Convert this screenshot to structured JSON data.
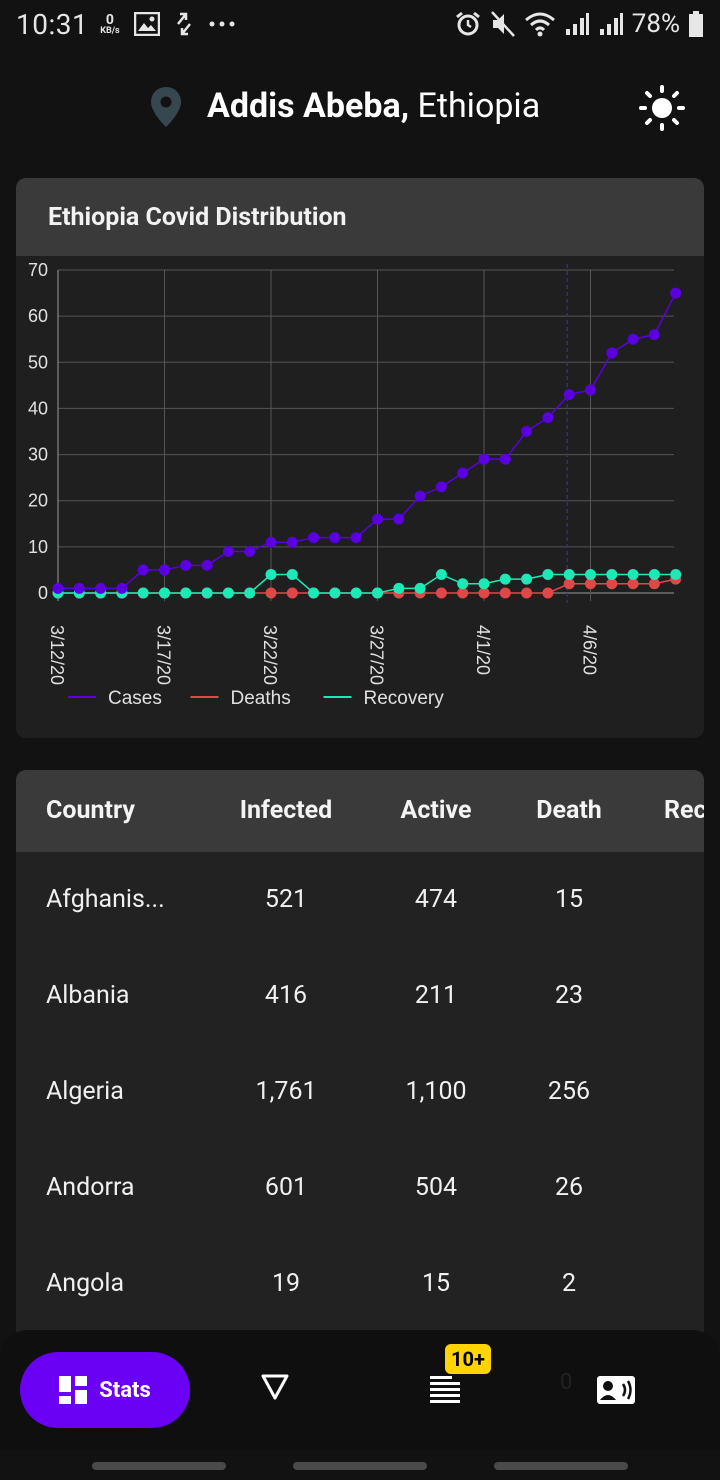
{
  "status_bar": {
    "time": "10:31",
    "net_speed_value": "0",
    "net_speed_unit": "KB/s",
    "battery": "78%"
  },
  "location": {
    "city": "Addis Abeba,",
    "country": "Ethiopia"
  },
  "chart_card": {
    "title": "Ethiopia Covid Distribution"
  },
  "chart_data": {
    "type": "line",
    "title": "Ethiopia Covid Distribution",
    "x": [
      "3/12/20",
      "3/13/20",
      "3/14/20",
      "3/15/20",
      "3/16/20",
      "3/17/20",
      "3/18/20",
      "3/19/20",
      "3/20/20",
      "3/21/20",
      "3/22/20",
      "3/23/20",
      "3/24/20",
      "3/25/20",
      "3/26/20",
      "3/27/20",
      "3/28/20",
      "3/29/20",
      "3/30/20",
      "3/31/20",
      "4/1/20",
      "4/2/20",
      "4/3/20",
      "4/4/20",
      "4/5/20",
      "4/6/20",
      "4/7/20",
      "4/8/20",
      "4/9/20",
      "4/10/20"
    ],
    "x_tick_labels": [
      "3/12/20",
      "3/17/20",
      "3/22/20",
      "3/27/20",
      "4/1/20",
      "4/6/20"
    ],
    "ylim": [
      0,
      70
    ],
    "y_ticks": [
      0,
      10,
      20,
      30,
      40,
      50,
      60,
      70
    ],
    "grid": true,
    "legend_position": "bottom-left",
    "series": [
      {
        "name": "Cases",
        "color": "#5b00e0",
        "values": [
          1,
          1,
          1,
          1,
          5,
          5,
          6,
          6,
          9,
          9,
          11,
          11,
          12,
          12,
          12,
          16,
          16,
          21,
          23,
          26,
          29,
          29,
          35,
          38,
          43,
          44,
          52,
          55,
          56,
          65
        ]
      },
      {
        "name": "Deaths",
        "color": "#e04848",
        "values": [
          0,
          0,
          0,
          0,
          0,
          0,
          0,
          0,
          0,
          0,
          0,
          0,
          0,
          0,
          0,
          0,
          0,
          0,
          0,
          0,
          0,
          0,
          0,
          0,
          2,
          2,
          2,
          2,
          2,
          3
        ]
      },
      {
        "name": "Recovery",
        "color": "#1de9b6",
        "values": [
          0,
          0,
          0,
          0,
          0,
          0,
          0,
          0,
          0,
          0,
          4,
          4,
          0,
          0,
          0,
          0,
          1,
          1,
          4,
          2,
          2,
          3,
          3,
          4,
          4,
          4,
          4,
          4,
          4,
          4
        ]
      }
    ]
  },
  "table": {
    "headers": [
      "Country",
      "Infected",
      "Active",
      "Death",
      "Rec"
    ],
    "rows": [
      {
        "country": "Afghanis...",
        "infected": "521",
        "active": "474",
        "death": "15"
      },
      {
        "country": "Albania",
        "infected": "416",
        "active": "211",
        "death": "23"
      },
      {
        "country": "Algeria",
        "infected": "1,761",
        "active": "1,100",
        "death": "256"
      },
      {
        "country": "Andorra",
        "infected": "601",
        "active": "504",
        "death": "26"
      },
      {
        "country": "Angola",
        "infected": "19",
        "active": "15",
        "death": "2"
      }
    ]
  },
  "bottom_nav": {
    "stats_label": "Stats",
    "badge": "10+",
    "ghost_count": "0",
    "accent": "#6a00f4"
  }
}
